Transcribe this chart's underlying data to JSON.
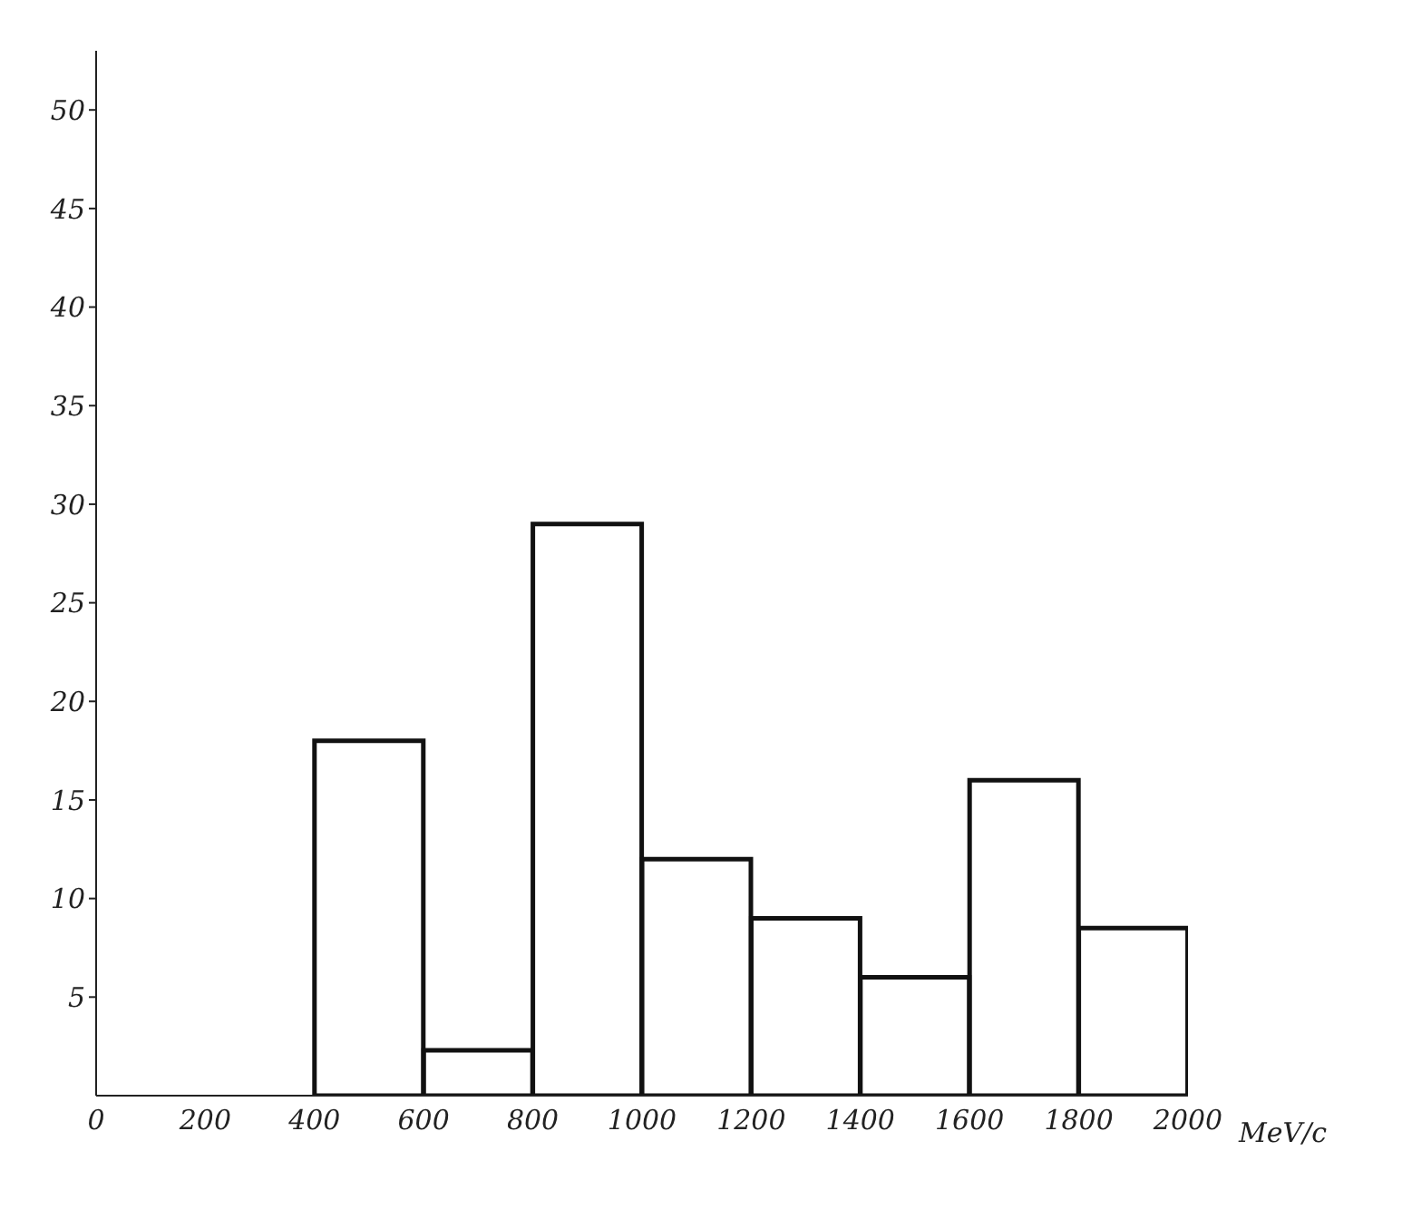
{
  "chart_data": {
    "type": "histogram",
    "xlabel": "MeV/c",
    "bins": [
      400,
      600,
      800,
      1000,
      1200,
      1400,
      1600,
      1800,
      2000
    ],
    "values": [
      18,
      2.3,
      29,
      12,
      9,
      6,
      16,
      8.5
    ],
    "color": "#111111",
    "xlim": [
      0,
      2000
    ],
    "xticks": [
      0,
      200,
      400,
      600,
      800,
      1000,
      1200,
      1400,
      1600,
      1800,
      2000
    ],
    "ylim": [
      0,
      53
    ],
    "yticks": [
      5,
      10,
      15,
      20,
      25,
      30,
      35,
      40,
      45,
      50
    ],
    "grid": false
  }
}
